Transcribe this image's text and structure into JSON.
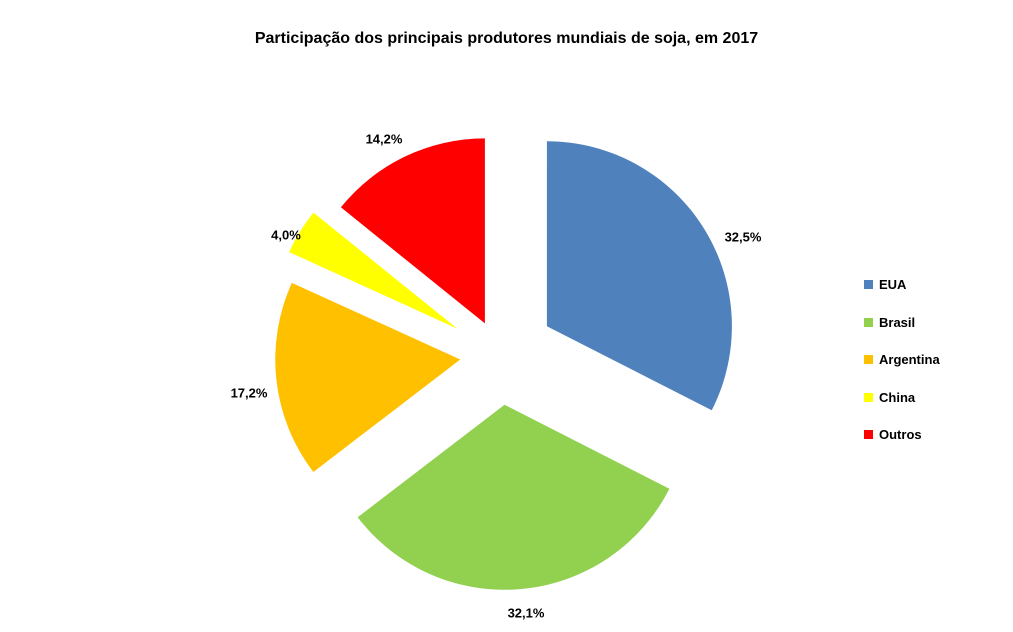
{
  "chart_data": {
    "type": "pie",
    "title": "Participação dos principais produtores mundiais de soja, em 2017",
    "categories": [
      "EUA",
      "Brasil",
      "Argentina",
      "China",
      "Outros"
    ],
    "values": [
      32.5,
      32.1,
      17.2,
      4.0,
      14.2
    ],
    "data_labels": [
      "32,5%",
      "32,1%",
      "17,2%",
      "4,0%",
      "14,2%"
    ],
    "colors": [
      "#4F81BD",
      "#92D050",
      "#FFC000",
      "#FFFF00",
      "#FF0000"
    ],
    "exploded": true,
    "legend": "right"
  }
}
